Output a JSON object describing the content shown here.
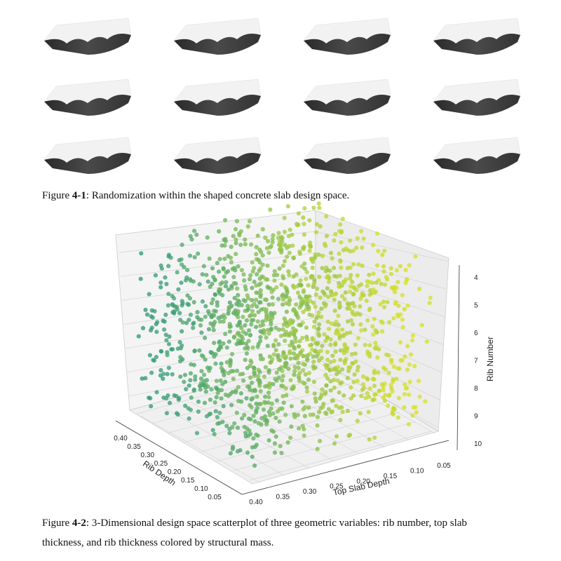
{
  "figure_1": {
    "caption": {
      "label": "Figure ",
      "number": "4-1",
      "text": ": Randomization within the shaped concrete slab design space."
    }
  },
  "figure_2": {
    "axes": {
      "x_label": "Top Slab Depth",
      "x_ticks": [
        "0.40",
        "0.35",
        "0.30",
        "0.25",
        "0.20",
        "0.15",
        "0.10",
        "0.05"
      ],
      "y_label": "Rib Depth",
      "y_ticks": [
        "0.40",
        "0.35",
        "0.30",
        "0.25",
        "0.20",
        "0.15",
        "0.10",
        "0.05"
      ],
      "z_label": "Rib Number",
      "z_ticks": [
        "4",
        "5",
        "6",
        "7",
        "8",
        "9",
        "10"
      ]
    },
    "caption": {
      "label": "Figure ",
      "number": "4-2",
      "text_line_1": ": 3-Dimensional design space scatterplot of three geometric variables: rib number, top slab",
      "text_line_2": "thickness, and rib thickness colored by structural mass."
    }
  }
}
